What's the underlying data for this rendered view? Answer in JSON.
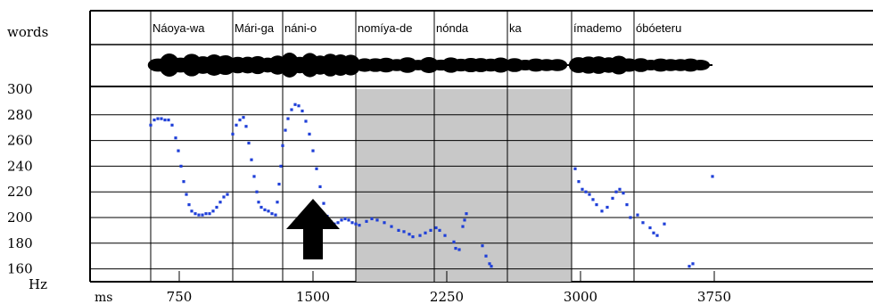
{
  "row_label_words": "words",
  "y_unit_label": "Hz",
  "x_unit_label": "ms",
  "word_labels": [
    "Náoya-wa",
    "Mári-ga",
    "náni-o",
    "nomíya-de",
    "nónda",
    "ka",
    "ímademo",
    "óbóeteru"
  ],
  "chart_data": {
    "type": "scatter",
    "title": "",
    "xlabel": "ms",
    "ylabel": "Hz",
    "ylim": [
      150,
      300
    ],
    "xlim": [
      250,
      4100
    ],
    "yticks": [
      160,
      180,
      200,
      220,
      240,
      260,
      280,
      300
    ],
    "xticks": [
      750,
      1500,
      2250,
      3000,
      3750
    ],
    "grid": true,
    "word_boundaries_ms": [
      590,
      1050,
      1330,
      1740,
      2180,
      2590,
      2950,
      3300
    ],
    "shaded_regions_ms": [
      [
        1740,
        2590
      ],
      [
        2590,
        2950
      ]
    ],
    "annotation": "up-arrow at ~1500 ms marking F0 peak on náni-o",
    "series": [
      {
        "color": "#1f3fd8",
        "points": [
          [
            590,
            272
          ],
          [
            610,
            276
          ],
          [
            630,
            277
          ],
          [
            650,
            277
          ],
          [
            670,
            276
          ],
          [
            690,
            276
          ],
          [
            710,
            272
          ],
          [
            730,
            262
          ],
          [
            745,
            252
          ],
          [
            760,
            240
          ],
          [
            775,
            228
          ],
          [
            790,
            218
          ],
          [
            805,
            210
          ],
          [
            820,
            205
          ],
          [
            840,
            203
          ],
          [
            860,
            202
          ],
          [
            880,
            202
          ],
          [
            900,
            203
          ],
          [
            920,
            203
          ],
          [
            940,
            205
          ],
          [
            960,
            208
          ],
          [
            980,
            212
          ],
          [
            1000,
            216
          ],
          [
            1020,
            218
          ],
          [
            1050,
            265
          ],
          [
            1070,
            272
          ],
          [
            1090,
            276
          ],
          [
            1110,
            278
          ],
          [
            1125,
            271
          ],
          [
            1140,
            258
          ],
          [
            1155,
            245
          ],
          [
            1170,
            232
          ],
          [
            1185,
            220
          ],
          [
            1195,
            212
          ],
          [
            1210,
            208
          ],
          [
            1230,
            206
          ],
          [
            1250,
            205
          ],
          [
            1270,
            203
          ],
          [
            1290,
            202
          ],
          [
            1300,
            212
          ],
          [
            1310,
            226
          ],
          [
            1320,
            240
          ],
          [
            1330,
            256
          ],
          [
            1345,
            268
          ],
          [
            1360,
            277
          ],
          [
            1380,
            284
          ],
          [
            1400,
            288
          ],
          [
            1420,
            287
          ],
          [
            1440,
            283
          ],
          [
            1460,
            275
          ],
          [
            1480,
            265
          ],
          [
            1500,
            252
          ],
          [
            1520,
            238
          ],
          [
            1540,
            224
          ],
          [
            1560,
            211
          ],
          [
            1580,
            201
          ],
          [
            1600,
            197
          ],
          [
            1620,
            195
          ],
          [
            1640,
            196
          ],
          [
            1660,
            198
          ],
          [
            1680,
            199
          ],
          [
            1700,
            198
          ],
          [
            1720,
            196
          ],
          [
            1740,
            195
          ],
          [
            1760,
            194
          ],
          [
            1800,
            197
          ],
          [
            1830,
            199
          ],
          [
            1860,
            198
          ],
          [
            1900,
            196
          ],
          [
            1940,
            193
          ],
          [
            1980,
            190
          ],
          [
            2010,
            189
          ],
          [
            2040,
            187
          ],
          [
            2060,
            185
          ],
          [
            2100,
            186
          ],
          [
            2130,
            188
          ],
          [
            2160,
            190
          ],
          [
            2190,
            192
          ],
          [
            2210,
            190
          ],
          [
            2240,
            186
          ],
          [
            2290,
            181
          ],
          [
            2300,
            176
          ],
          [
            2320,
            175
          ],
          [
            2340,
            193
          ],
          [
            2350,
            198
          ],
          [
            2360,
            203
          ],
          [
            2450,
            178
          ],
          [
            2470,
            170
          ],
          [
            2490,
            164
          ],
          [
            2500,
            162
          ],
          [
            2970,
            238
          ],
          [
            2990,
            228
          ],
          [
            3010,
            222
          ],
          [
            3030,
            220
          ],
          [
            3050,
            218
          ],
          [
            3070,
            214
          ],
          [
            3090,
            210
          ],
          [
            3120,
            205
          ],
          [
            3150,
            208
          ],
          [
            3180,
            215
          ],
          [
            3200,
            220
          ],
          [
            3220,
            222
          ],
          [
            3240,
            219
          ],
          [
            3260,
            210
          ],
          [
            3280,
            200
          ],
          [
            3320,
            202
          ],
          [
            3350,
            196
          ],
          [
            3390,
            192
          ],
          [
            3410,
            188
          ],
          [
            3430,
            186
          ],
          [
            3470,
            195
          ],
          [
            3610,
            162
          ],
          [
            3630,
            164
          ],
          [
            3740,
            232
          ]
        ]
      }
    ]
  }
}
